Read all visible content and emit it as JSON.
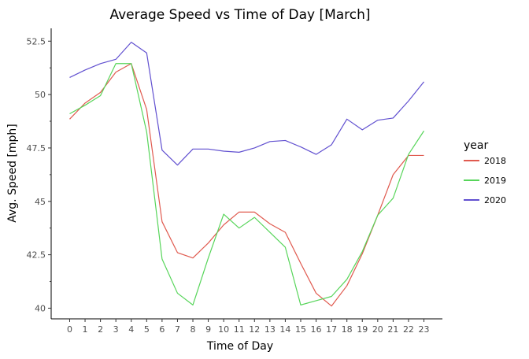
{
  "chart_data": {
    "type": "line",
    "title": "Average Speed vs Time of Day [March]",
    "xlabel": "Time of Day",
    "ylabel": "Avg. Speed [mph]",
    "x": [
      0,
      1,
      2,
      3,
      4,
      5,
      6,
      7,
      8,
      9,
      10,
      11,
      12,
      13,
      14,
      15,
      16,
      17,
      18,
      19,
      20,
      21,
      22,
      23
    ],
    "x_tick_labels": [
      "0",
      "1",
      "2",
      "3",
      "4",
      "5",
      "6",
      "7",
      "8",
      "9",
      "10",
      "11",
      "12",
      "13",
      "14",
      "15",
      "16",
      "17",
      "18",
      "19",
      "20",
      "21",
      "22",
      "23"
    ],
    "y_ticks": [
      40,
      42.5,
      45,
      47.5,
      50,
      52.5
    ],
    "y_tick_labels": [
      "40",
      "42.5",
      "45",
      "47.5",
      "50",
      "52.5"
    ],
    "xlim": [
      -1.2,
      24.2
    ],
    "ylim": [
      39.5,
      53.1
    ],
    "grid": false,
    "legend_title": "year",
    "legend_position": "right",
    "series": [
      {
        "name": "2018",
        "color": "#E05A4F",
        "values": [
          48.85,
          49.6,
          50.1,
          51.05,
          51.45,
          49.3,
          44.05,
          42.6,
          42.35,
          43.05,
          43.9,
          44.5,
          44.5,
          43.95,
          43.55,
          42.1,
          40.7,
          40.1,
          41.05,
          42.55,
          44.35,
          46.25,
          47.15,
          47.15
        ]
      },
      {
        "name": "2019",
        "color": "#57D55A",
        "values": [
          49.1,
          49.5,
          49.95,
          51.45,
          51.45,
          48.25,
          42.3,
          40.7,
          40.15,
          42.35,
          44.4,
          43.75,
          44.25,
          43.55,
          42.85,
          40.15,
          40.35,
          40.55,
          41.35,
          42.65,
          44.35,
          45.15,
          47.2,
          48.3
        ]
      },
      {
        "name": "2020",
        "color": "#6150D0",
        "values": [
          50.8,
          51.15,
          51.45,
          51.65,
          52.45,
          51.95,
          47.4,
          46.7,
          47.45,
          47.45,
          47.35,
          47.3,
          47.5,
          47.8,
          47.85,
          47.55,
          47.2,
          47.65,
          48.85,
          48.35,
          48.8,
          48.9,
          49.7,
          50.6
        ]
      }
    ]
  }
}
